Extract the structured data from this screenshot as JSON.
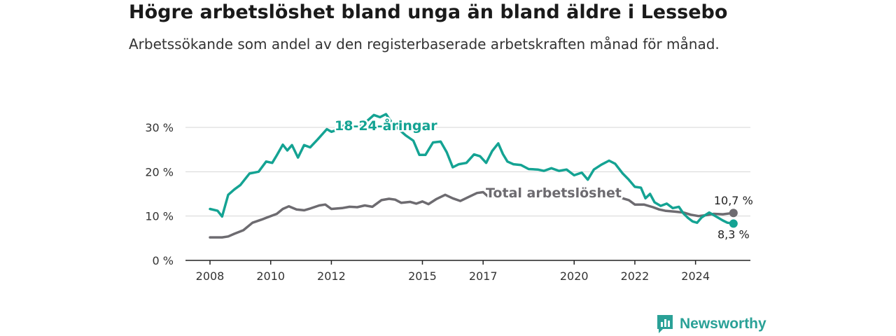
{
  "title": "Högre arbetslöshet bland unga än bland äldre i Lessebo",
  "subtitle": "Arbetssökande som andel av den registerbaserade arbetskraften månad för månad.",
  "brand": {
    "name": "Newsworthy",
    "color": "#2aa197"
  },
  "chart_data": {
    "type": "line",
    "title": "Högre arbetslöshet bland unga än bland äldre i Lessebo",
    "xlabel": "",
    "ylabel": "",
    "xlim": [
      2008.0,
      2025.3
    ],
    "ylim": [
      0,
      30
    ],
    "yticks": [
      0,
      10,
      20,
      30
    ],
    "ytick_labels": [
      "0 %",
      "10 %",
      "20 %",
      "30 %"
    ],
    "xticks": [
      2008,
      2010,
      2012,
      2015,
      2017,
      2020,
      2022,
      2024
    ],
    "xtick_labels": [
      "2008",
      "2010",
      "2012",
      "2015",
      "2017",
      "2020",
      "2022",
      "2024"
    ],
    "grid": true,
    "legend": "inline labels on lines",
    "series": [
      {
        "name": "18-24-åringar",
        "color": "#14a393",
        "end_label": "8,3 %",
        "points": [
          [
            2008.0,
            11.6
          ],
          [
            2008.25,
            11.2
          ],
          [
            2008.4,
            9.9
          ],
          [
            2008.6,
            14.8
          ],
          [
            2008.8,
            16.0
          ],
          [
            2009.0,
            17.0
          ],
          [
            2009.3,
            19.6
          ],
          [
            2009.6,
            20.0
          ],
          [
            2009.85,
            22.3
          ],
          [
            2010.05,
            22.0
          ],
          [
            2010.2,
            23.7
          ],
          [
            2010.4,
            26.1
          ],
          [
            2010.55,
            24.8
          ],
          [
            2010.7,
            26.0
          ],
          [
            2010.9,
            23.2
          ],
          [
            2011.1,
            26.0
          ],
          [
            2011.3,
            25.5
          ],
          [
            2011.55,
            27.3
          ],
          [
            2011.85,
            29.6
          ],
          [
            2012.0,
            29.0
          ],
          [
            2012.25,
            29.6
          ],
          [
            2012.45,
            30.6
          ],
          [
            2012.6,
            30.8
          ],
          [
            2012.75,
            30.2
          ],
          [
            2013.0,
            30.4
          ],
          [
            2013.2,
            31.6
          ],
          [
            2013.4,
            32.8
          ],
          [
            2013.6,
            32.3
          ],
          [
            2013.8,
            33.0
          ],
          [
            2014.0,
            31.0
          ],
          [
            2014.2,
            29.7
          ],
          [
            2014.45,
            28.2
          ],
          [
            2014.7,
            27.0
          ],
          [
            2014.9,
            23.8
          ],
          [
            2015.1,
            23.8
          ],
          [
            2015.35,
            26.6
          ],
          [
            2015.6,
            26.8
          ],
          [
            2015.8,
            24.4
          ],
          [
            2016.0,
            21.0
          ],
          [
            2016.2,
            21.7
          ],
          [
            2016.45,
            22.0
          ],
          [
            2016.7,
            23.9
          ],
          [
            2016.9,
            23.5
          ],
          [
            2017.1,
            22.0
          ],
          [
            2017.3,
            24.7
          ],
          [
            2017.5,
            26.4
          ],
          [
            2017.65,
            24.0
          ],
          [
            2017.8,
            22.3
          ],
          [
            2018.0,
            21.7
          ],
          [
            2018.25,
            21.5
          ],
          [
            2018.5,
            20.6
          ],
          [
            2018.8,
            20.5
          ],
          [
            2019.0,
            20.2
          ],
          [
            2019.25,
            20.8
          ],
          [
            2019.5,
            20.2
          ],
          [
            2019.75,
            20.5
          ],
          [
            2020.0,
            19.2
          ],
          [
            2020.25,
            19.8
          ],
          [
            2020.45,
            18.2
          ],
          [
            2020.65,
            20.5
          ],
          [
            2020.9,
            21.6
          ],
          [
            2021.15,
            22.5
          ],
          [
            2021.35,
            21.8
          ],
          [
            2021.6,
            19.6
          ],
          [
            2021.8,
            18.2
          ],
          [
            2022.0,
            16.6
          ],
          [
            2022.2,
            16.4
          ],
          [
            2022.35,
            14.0
          ],
          [
            2022.5,
            15.0
          ],
          [
            2022.65,
            13.1
          ],
          [
            2022.85,
            12.3
          ],
          [
            2023.05,
            12.8
          ],
          [
            2023.25,
            11.8
          ],
          [
            2023.45,
            12.1
          ],
          [
            2023.6,
            10.6
          ],
          [
            2023.75,
            9.6
          ],
          [
            2023.9,
            8.8
          ],
          [
            2024.05,
            8.5
          ],
          [
            2024.2,
            9.7
          ],
          [
            2024.45,
            10.8
          ],
          [
            2024.7,
            9.8
          ],
          [
            2024.9,
            9.0
          ],
          [
            2025.05,
            8.5
          ],
          [
            2025.25,
            8.3
          ]
        ]
      },
      {
        "name": "Total arbetslöshet",
        "color": "#6d6b70",
        "end_label": "10,7 %",
        "points": [
          [
            2008.0,
            5.2
          ],
          [
            2008.4,
            5.2
          ],
          [
            2008.6,
            5.4
          ],
          [
            2008.8,
            6.0
          ],
          [
            2009.1,
            6.8
          ],
          [
            2009.4,
            8.5
          ],
          [
            2009.7,
            9.2
          ],
          [
            2010.0,
            10.0
          ],
          [
            2010.2,
            10.5
          ],
          [
            2010.4,
            11.6
          ],
          [
            2010.6,
            12.2
          ],
          [
            2010.85,
            11.5
          ],
          [
            2011.1,
            11.3
          ],
          [
            2011.3,
            11.7
          ],
          [
            2011.6,
            12.4
          ],
          [
            2011.8,
            12.6
          ],
          [
            2012.0,
            11.6
          ],
          [
            2012.35,
            11.8
          ],
          [
            2012.6,
            12.1
          ],
          [
            2012.85,
            12.0
          ],
          [
            2013.1,
            12.4
          ],
          [
            2013.35,
            12.1
          ],
          [
            2013.65,
            13.6
          ],
          [
            2013.9,
            13.9
          ],
          [
            2014.1,
            13.7
          ],
          [
            2014.3,
            13.0
          ],
          [
            2014.6,
            13.2
          ],
          [
            2014.8,
            12.8
          ],
          [
            2015.0,
            13.3
          ],
          [
            2015.2,
            12.7
          ],
          [
            2015.45,
            13.8
          ],
          [
            2015.75,
            14.8
          ],
          [
            2016.0,
            14.0
          ],
          [
            2016.25,
            13.4
          ],
          [
            2016.55,
            14.4
          ],
          [
            2016.8,
            15.2
          ],
          [
            2017.0,
            15.4
          ],
          [
            2017.2,
            14.2
          ],
          [
            2017.5,
            14.5
          ],
          [
            2017.7,
            15.5
          ]
        ],
        "points_late": [
          [
            2021.6,
            14.0
          ],
          [
            2021.8,
            13.6
          ],
          [
            2022.0,
            12.6
          ],
          [
            2022.3,
            12.6
          ],
          [
            2022.6,
            12.0
          ],
          [
            2022.8,
            11.5
          ],
          [
            2023.0,
            11.2
          ],
          [
            2023.3,
            11.0
          ],
          [
            2023.6,
            10.8
          ],
          [
            2023.85,
            10.3
          ],
          [
            2024.1,
            10.0
          ],
          [
            2024.35,
            10.2
          ],
          [
            2024.6,
            10.5
          ],
          [
            2024.9,
            10.4
          ],
          [
            2025.25,
            10.7
          ]
        ]
      }
    ]
  }
}
